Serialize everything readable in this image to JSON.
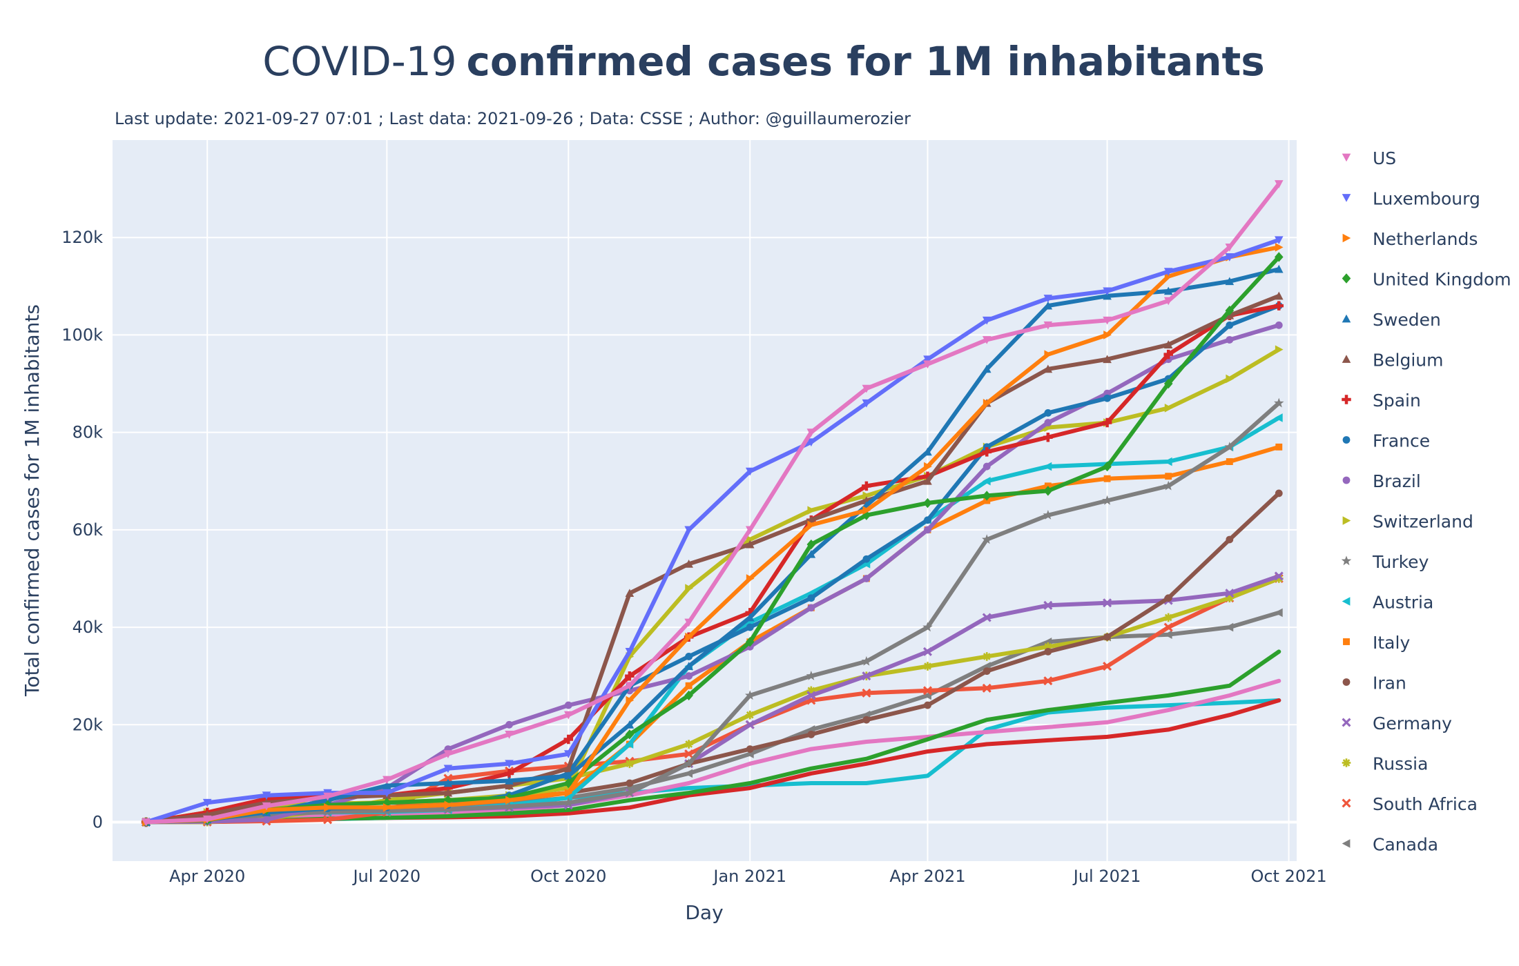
{
  "chart_data": {
    "type": "line",
    "title": "COVID-19",
    "title_bold": "confirmed cases for 1M inhabitants",
    "subtitle": "Last update: 2021-09-27 07:01 ; Last data: 2021-09-26 ; Data: CSSE ; Author: @guillaumerozier",
    "xlabel": "Day",
    "ylabel": "Total confirmed cases  for 1M inhabitants",
    "xlim": [
      -17,
      583
    ],
    "ylim": [
      -8000,
      140000
    ],
    "x_unit": "days since 2020-03-01",
    "x_ticks": [
      {
        "value": 31,
        "label": "Apr 2020"
      },
      {
        "value": 122,
        "label": "Jul 2020"
      },
      {
        "value": 214,
        "label": "Oct 2020"
      },
      {
        "value": 306,
        "label": "Jan 2021"
      },
      {
        "value": 396,
        "label": "Apr 2021"
      },
      {
        "value": 487,
        "label": "Jul 2021"
      },
      {
        "value": 579,
        "label": "Oct 2021"
      }
    ],
    "y_ticks": [
      {
        "value": 0,
        "label": "0"
      },
      {
        "value": 20000,
        "label": "20k"
      },
      {
        "value": 40000,
        "label": "40k"
      },
      {
        "value": 60000,
        "label": "60k"
      },
      {
        "value": 80000,
        "label": "80k"
      },
      {
        "value": 100000,
        "label": "100k"
      },
      {
        "value": 120000,
        "label": "120k"
      }
    ],
    "x": [
      0,
      31,
      61,
      92,
      122,
      153,
      184,
      214,
      245,
      275,
      306,
      337,
      365,
      396,
      426,
      457,
      487,
      518,
      549,
      574
    ],
    "series": [
      {
        "name": "US",
        "color": "#e377c2",
        "marker": "tri-down",
        "values": [
          0,
          600,
          3300,
          5300,
          8700,
          14000,
          18000,
          22000,
          28000,
          41000,
          60000,
          80000,
          89000,
          94000,
          99000,
          102000,
          103000,
          107000,
          118000,
          131000
        ]
      },
      {
        "name": "Luxembourg",
        "color": "#636efa",
        "marker": "tri-down",
        "values": [
          0,
          4000,
          5500,
          6000,
          6000,
          11000,
          12000,
          14000,
          35000,
          60000,
          72000,
          78000,
          86000,
          95000,
          103000,
          107500,
          109000,
          113000,
          116000,
          119500
        ]
      },
      {
        "name": "Netherlands",
        "color": "#ff7f0e",
        "marker": "tri-right",
        "values": [
          0,
          500,
          2500,
          3000,
          3000,
          3500,
          4500,
          6000,
          25000,
          38000,
          50000,
          61000,
          64000,
          73000,
          86000,
          96000,
          100000,
          112000,
          116000,
          118000
        ]
      },
      {
        "name": "United Kingdom",
        "color": "#2ca02c",
        "marker": "diamond",
        "values": [
          0,
          400,
          2500,
          3500,
          4000,
          4500,
          5000,
          8000,
          18000,
          26000,
          37000,
          57000,
          63000,
          65500,
          67000,
          68000,
          73000,
          90000,
          105000,
          116000
        ]
      },
      {
        "name": "Sweden",
        "color": "#1f77b4",
        "marker": "tri-up",
        "values": [
          0,
          500,
          2000,
          4500,
          7500,
          8000,
          8500,
          9500,
          20000,
          32000,
          42000,
          55000,
          65000,
          76000,
          93000,
          106000,
          108000,
          109000,
          111000,
          113500
        ]
      },
      {
        "name": "Belgium",
        "color": "#8c564b",
        "marker": "tri-up",
        "values": [
          0,
          1500,
          4000,
          5000,
          5500,
          6000,
          7500,
          11000,
          47000,
          53000,
          57000,
          62000,
          66000,
          70000,
          86000,
          93000,
          95000,
          98000,
          104000,
          108000
        ]
      },
      {
        "name": "Spain",
        "color": "#d62728",
        "marker": "cross",
        "values": [
          0,
          2000,
          4800,
          5300,
          5500,
          7000,
          10000,
          17000,
          30000,
          38000,
          43000,
          62000,
          69000,
          71000,
          76000,
          79000,
          82000,
          96000,
          104000,
          106000
        ]
      },
      {
        "name": "France",
        "color": "#1f77b4",
        "marker": "circle",
        "values": [
          0,
          700,
          2000,
          2800,
          3000,
          3500,
          5500,
          10000,
          28000,
          34000,
          40000,
          46000,
          54000,
          62000,
          77000,
          84000,
          87000,
          91000,
          102000,
          106000
        ]
      },
      {
        "name": "Brazil",
        "color": "#9467bd",
        "marker": "circle",
        "values": [
          0,
          100,
          500,
          3500,
          7000,
          15000,
          20000,
          24000,
          27000,
          30000,
          36000,
          44000,
          50000,
          60000,
          73000,
          82000,
          88000,
          95000,
          99000,
          102000
        ]
      },
      {
        "name": "Switzerland",
        "color": "#bcbd22",
        "marker": "tri-right",
        "values": [
          0,
          2000,
          3500,
          3800,
          4000,
          4500,
          5500,
          7000,
          34000,
          48000,
          58000,
          64000,
          67000,
          71000,
          77000,
          81000,
          82000,
          85000,
          91000,
          97000
        ]
      },
      {
        "name": "Turkey",
        "color": "#7f7f7f",
        "marker": "star",
        "values": [
          0,
          200,
          1500,
          2100,
          2300,
          2600,
          3200,
          4000,
          6000,
          12000,
          26000,
          30000,
          33000,
          40000,
          58000,
          63000,
          66000,
          69000,
          77000,
          86000
        ]
      },
      {
        "name": "Austria",
        "color": "#17becf",
        "marker": "tri-left",
        "values": [
          0,
          1000,
          1800,
          2000,
          2100,
          2500,
          3500,
          5000,
          16000,
          32000,
          41000,
          47000,
          53000,
          62000,
          70000,
          73000,
          73500,
          74000,
          77000,
          83000
        ]
      },
      {
        "name": "Italy",
        "color": "#ff7f0e",
        "marker": "square",
        "values": [
          0,
          1700,
          3300,
          3800,
          4000,
          4300,
          5000,
          6000,
          16000,
          28000,
          37000,
          44000,
          50000,
          60000,
          66000,
          69000,
          70500,
          71000,
          74000,
          77000
        ]
      },
      {
        "name": "Iran",
        "color": "#8c564b",
        "marker": "circle",
        "values": [
          0,
          600,
          1500,
          2500,
          3000,
          4000,
          5000,
          6000,
          8000,
          12000,
          15000,
          18000,
          21000,
          24000,
          31000,
          35000,
          38000,
          46000,
          58000,
          67500
        ]
      },
      {
        "name": "Germany",
        "color": "#9467bd",
        "marker": "x",
        "values": [
          0,
          900,
          2000,
          2200,
          2400,
          2600,
          3000,
          3500,
          6000,
          12000,
          20000,
          26000,
          30000,
          35000,
          42000,
          44500,
          45000,
          45500,
          47000,
          50500
        ]
      },
      {
        "name": "Russia",
        "color": "#bcbd22",
        "marker": "asterisk",
        "values": [
          0,
          50,
          700,
          2500,
          4500,
          6000,
          7500,
          9000,
          12000,
          16000,
          22000,
          27000,
          30000,
          32000,
          34000,
          36000,
          38000,
          42000,
          46000,
          50000
        ]
      },
      {
        "name": "South Africa",
        "color": "#ef553b",
        "marker": "x",
        "values": [
          0,
          30,
          200,
          500,
          2000,
          9000,
          10500,
          11500,
          12500,
          14000,
          20000,
          25000,
          26500,
          27000,
          27500,
          29000,
          32000,
          40000,
          46000,
          50000
        ]
      },
      {
        "name": "Canada",
        "color": "#7f7f7f",
        "marker": "tri-left",
        "values": [
          0,
          300,
          1200,
          2300,
          2700,
          3200,
          3900,
          5000,
          7000,
          10000,
          14000,
          19000,
          22000,
          26000,
          32000,
          37000,
          38000,
          38500,
          40000,
          43000
        ]
      },
      {
        "name": "",
        "color": "#2ca02c",
        "marker": "none",
        "values": [
          0,
          50,
          300,
          700,
          900,
          1200,
          1800,
          2500,
          4500,
          6000,
          8000,
          11000,
          13000,
          17000,
          21000,
          23000,
          24500,
          26000,
          28000,
          35000
        ]
      },
      {
        "name": "",
        "color": "#e377c2",
        "marker": "none",
        "values": [
          0,
          200,
          800,
          1200,
          1400,
          1700,
          2400,
          3500,
          5500,
          8000,
          12000,
          15000,
          16500,
          17500,
          18500,
          19500,
          20500,
          23000,
          26000,
          29000
        ]
      },
      {
        "name": "",
        "color": "#d62728",
        "marker": "none",
        "values": [
          0,
          100,
          400,
          700,
          900,
          1000,
          1200,
          1800,
          3000,
          5500,
          7000,
          10000,
          12000,
          14500,
          16000,
          16800,
          17500,
          19000,
          22000,
          25000
        ]
      },
      {
        "name": "",
        "color": "#17becf",
        "marker": "none",
        "values": [
          0,
          200,
          400,
          600,
          900,
          2000,
          3500,
          5000,
          6000,
          7000,
          7500,
          8000,
          8000,
          9500,
          19000,
          22500,
          23500,
          24000,
          24500,
          25000
        ]
      }
    ]
  }
}
